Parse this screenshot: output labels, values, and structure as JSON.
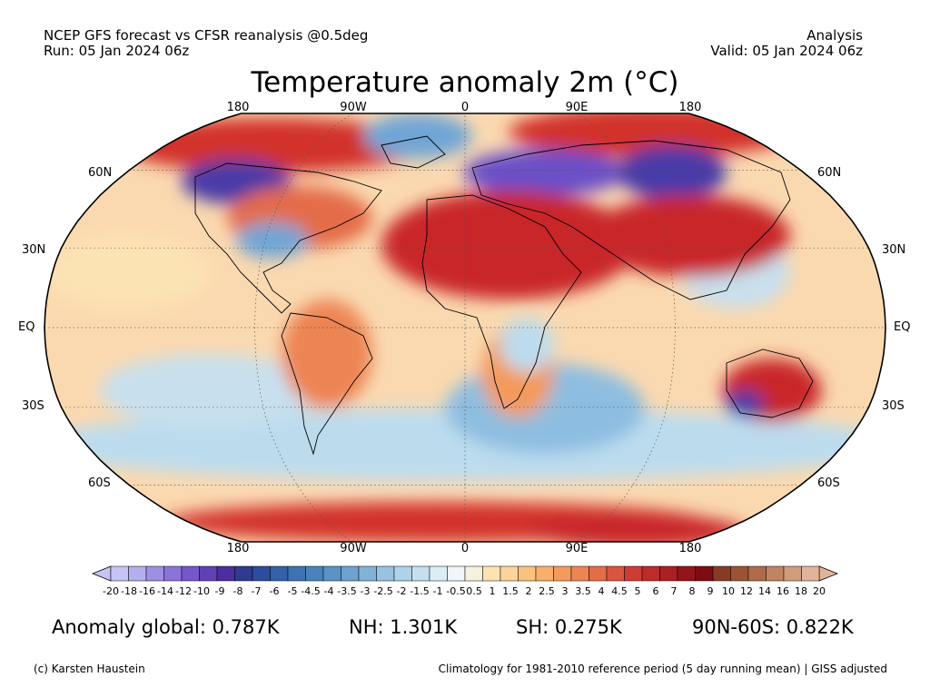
{
  "header": {
    "left_line1": "NCEP GFS forecast vs CFSR reanalysis @0.5deg",
    "left_line2": "Run: 05 Jan 2024 06z",
    "right_line1": "Analysis",
    "right_line2": "Valid: 05 Jan 2024 06z"
  },
  "title": "Temperature anomaly 2m (°C)",
  "map": {
    "projection": "Robinson",
    "lon_labels_top": [
      "180",
      "90W",
      "0",
      "90E",
      "180"
    ],
    "lon_labels_bottom": [
      "180",
      "90W",
      "0",
      "90E",
      "180"
    ],
    "lat_labels_left": [
      "60N",
      "30N",
      "EQ",
      "30S",
      "60S"
    ],
    "lat_labels_right": [
      "60N",
      "30N",
      "EQ",
      "30S",
      "60S"
    ],
    "colors": {
      "ocean_base": "#fbd9b0",
      "cold_strong": "#4a3aa8",
      "cold": "#6fa6d6",
      "cold_light": "#bcdcee",
      "warm": "#f2a46a",
      "warm_strong": "#d2332a",
      "hot": "#8c1414",
      "outline": "#000000"
    }
  },
  "colorbar": {
    "labels": [
      "-20",
      "-18",
      "-16",
      "-14",
      "-12",
      "-10",
      "-9",
      "-8",
      "-7",
      "-6",
      "-5",
      "-4.5",
      "-4",
      "-3.5",
      "-3",
      "-2.5",
      "-2",
      "-1.5",
      "-1",
      "-0.5",
      "0.5",
      "1",
      "1.5",
      "2",
      "2.5",
      "3",
      "3.5",
      "4",
      "4.5",
      "5",
      "6",
      "7",
      "8",
      "9",
      "10",
      "12",
      "14",
      "16",
      "18",
      "20"
    ],
    "colors": [
      "#c7c3f2",
      "#b3aeec",
      "#9d90e3",
      "#8a74d8",
      "#7556cc",
      "#6040b4",
      "#4e2da0",
      "#2e3b8f",
      "#2c4c9c",
      "#3561a8",
      "#3f72b2",
      "#4a82bc",
      "#5b93c6",
      "#6ea2ce",
      "#82b2d6",
      "#98c2de",
      "#aed2e8",
      "#c4e0ef",
      "#daeef6",
      "#f2f6f8",
      "#f8f0de",
      "#fce3b4",
      "#fcd49a",
      "#fbc27e",
      "#f9ae6b",
      "#f49a5c",
      "#ed8453",
      "#e46c49",
      "#da5440",
      "#cf3c35",
      "#bf2a2a",
      "#ac1f22",
      "#95141c",
      "#7e0c14",
      "#8a3a22",
      "#9c5234",
      "#ae6a4a",
      "#c08462",
      "#d09c7c",
      "#e0b49a"
    ]
  },
  "stats": {
    "global": "Anomaly global: 0.787K",
    "nh": "NH: 1.301K",
    "sh": "SH: 0.275K",
    "arctic": "90N-60S: 0.822K"
  },
  "footer": {
    "left": "(c) Karsten Haustein",
    "right": "Climatology for 1981-2010 reference period (5 day running mean) | GISS adjusted"
  }
}
